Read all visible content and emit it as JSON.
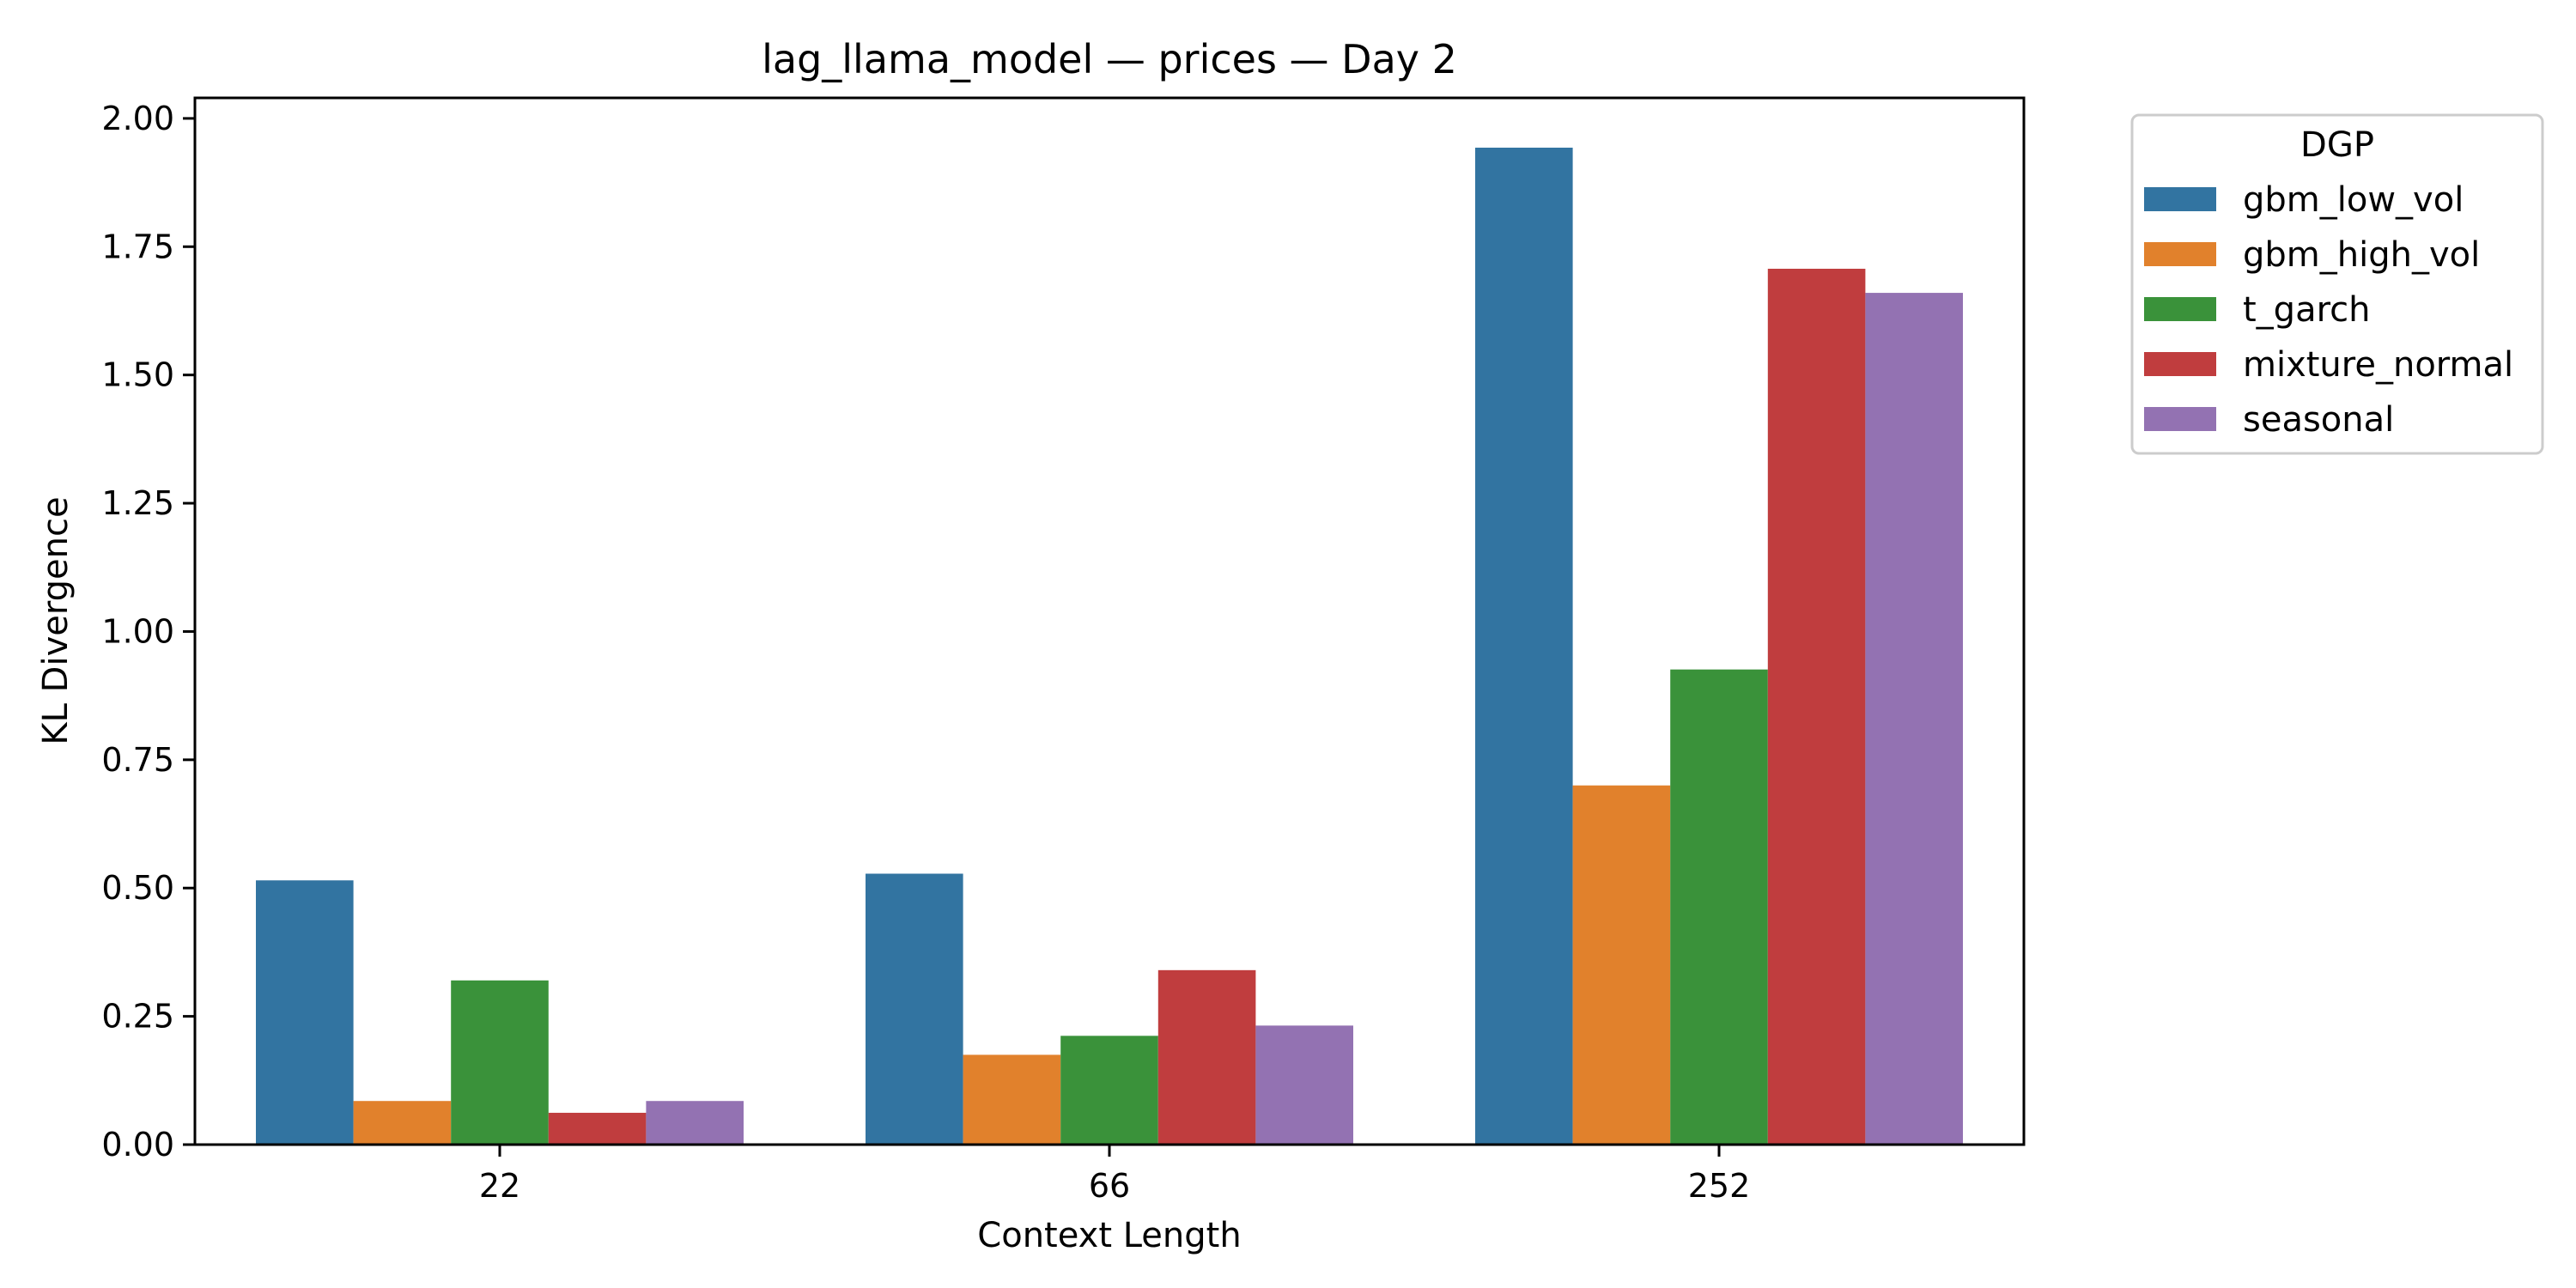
{
  "chart_data": {
    "type": "bar",
    "title": "lag_llama_model — prices — Day 2",
    "xlabel": "Context Length",
    "ylabel": "KL Divergence",
    "categories": [
      "22",
      "66",
      "252"
    ],
    "ylim": [
      0,
      2.04
    ],
    "yticks": [
      "0.00",
      "0.25",
      "0.50",
      "0.75",
      "1.00",
      "1.25",
      "1.50",
      "1.75",
      "2.00"
    ],
    "grid": false,
    "legend": {
      "title": "DGP",
      "placement": "outside-top-right"
    },
    "series": [
      {
        "name": "gbm_low_vol",
        "color": "#3274a1",
        "values": [
          0.515,
          0.528,
          1.943
        ]
      },
      {
        "name": "gbm_high_vol",
        "color": "#e1812c",
        "values": [
          0.085,
          0.175,
          0.7
        ]
      },
      {
        "name": "t_garch",
        "color": "#3a923a",
        "values": [
          0.32,
          0.212,
          0.926
        ]
      },
      {
        "name": "mixture_normal",
        "color": "#c03d3e",
        "values": [
          0.062,
          0.34,
          1.707
        ]
      },
      {
        "name": "seasonal",
        "color": "#9372b2",
        "values": [
          0.085,
          0.232,
          1.66
        ]
      }
    ]
  }
}
